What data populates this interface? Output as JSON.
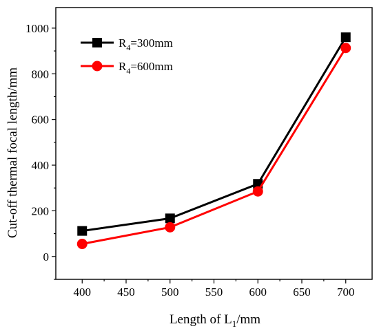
{
  "chart_data": {
    "type": "line",
    "xlabel_main": "Length of L",
    "xlabel_sub": "1",
    "xlabel_unit": "/mm",
    "ylabel": "Cut-off thermal focal length/mm",
    "x": [
      400,
      500,
      600,
      700
    ],
    "xlim": [
      370,
      730
    ],
    "ylim": [
      -100,
      1090
    ],
    "xticks": [
      400,
      450,
      500,
      550,
      600,
      650,
      700
    ],
    "yticks": [
      0,
      200,
      400,
      600,
      800,
      1000
    ],
    "grid": false,
    "legend_position": "top-left",
    "series": [
      {
        "name_main": "R",
        "name_sub": "4",
        "name_rest": "=300mm",
        "marker": "square",
        "color": "#000000",
        "values": [
          112,
          167,
          318,
          960
        ]
      },
      {
        "name_main": "R",
        "name_sub": "4",
        "name_rest": "=600mm",
        "marker": "circle",
        "color": "#ff0000",
        "values": [
          55,
          128,
          285,
          913
        ]
      }
    ]
  }
}
